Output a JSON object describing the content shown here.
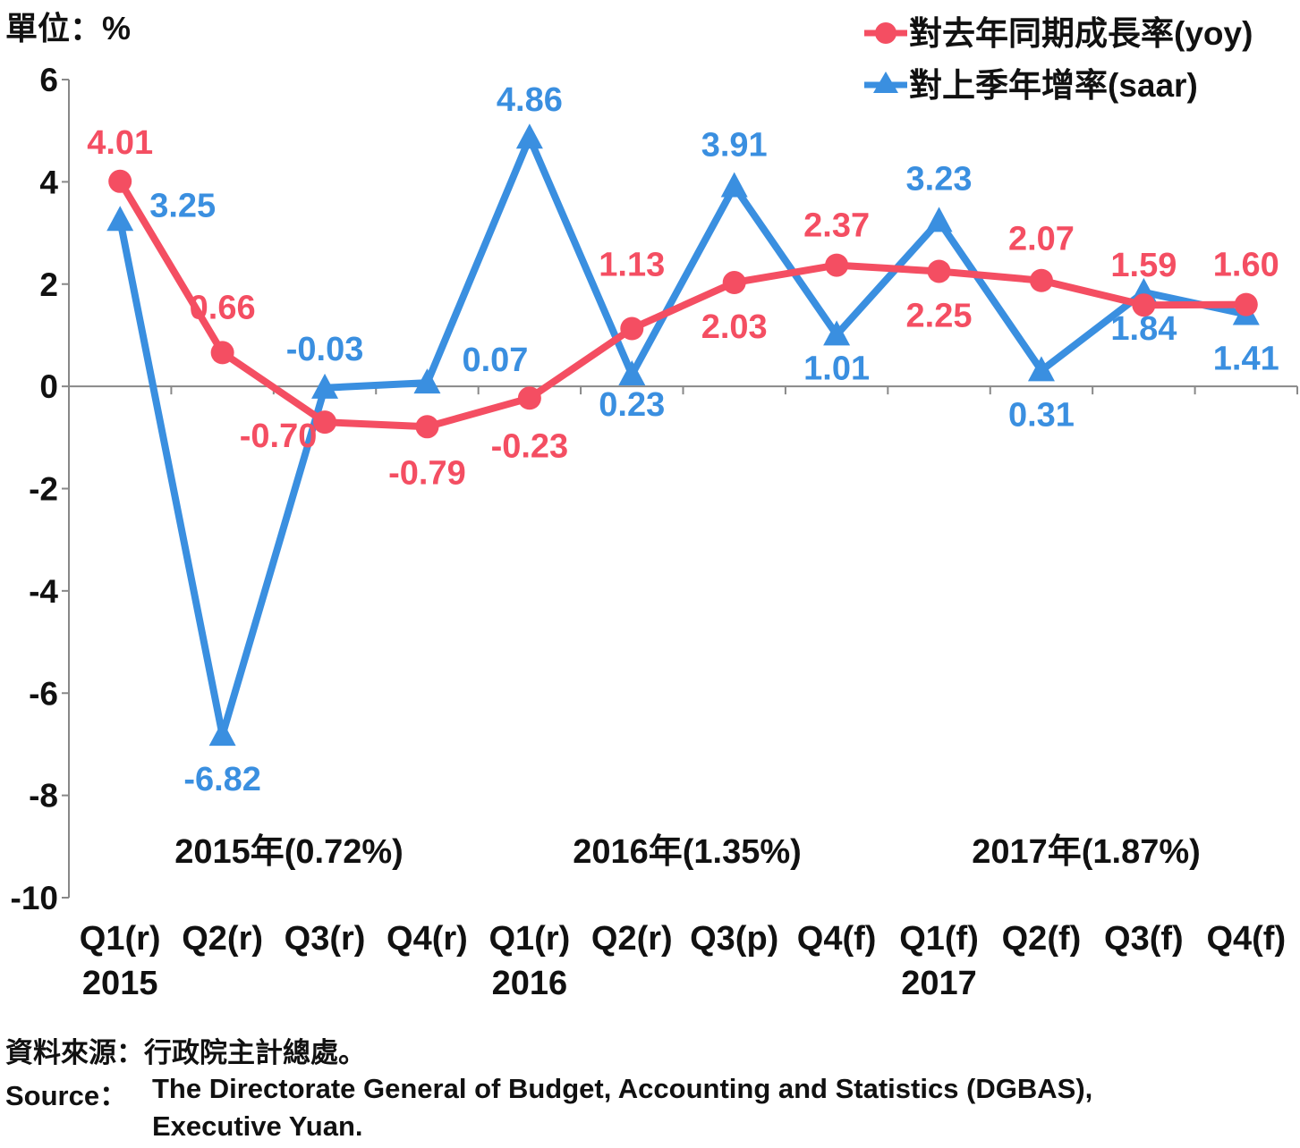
{
  "unit_label": "單位：%",
  "legend": {
    "yoy": "對去年同期成長率(yoy)",
    "saar": "對上季年增率(saar)"
  },
  "year_labels": [
    "2015年(0.72%)",
    "2016年(1.35%)",
    "2017年(1.87%)"
  ],
  "source_zh": "資料來源：行政院主計總處。",
  "source_en_label": "Source：",
  "source_en_line1": "The Directorate General of Budget, Accounting and Statistics (DGBAS),",
  "source_en_line2": "Executive Yuan.",
  "colors": {
    "yoy": "#f44e62",
    "saar": "#3a8fe0",
    "axis": "#888888",
    "text": "#111111"
  },
  "chart_data": {
    "type": "line",
    "categories": [
      "Q1(r)",
      "Q2(r)",
      "Q3(r)",
      "Q4(r)",
      "Q1(r)",
      "Q2(r)",
      "Q3(p)",
      "Q4(f)",
      "Q1(f)",
      "Q2(f)",
      "Q3(f)",
      "Q4(f)"
    ],
    "year_ticks": [
      {
        "index": 0,
        "label": "2015"
      },
      {
        "index": 4,
        "label": "2016"
      },
      {
        "index": 8,
        "label": "2017"
      }
    ],
    "ylim": [
      -10,
      6
    ],
    "yticks": [
      6,
      4,
      2,
      0,
      -2,
      -4,
      -6,
      -8,
      -10
    ],
    "series": [
      {
        "key": "yoy",
        "name": "對去年同期成長率(yoy)",
        "marker": "circle",
        "values": [
          4.01,
          0.66,
          -0.7,
          -0.79,
          -0.23,
          1.13,
          2.03,
          2.37,
          2.25,
          2.07,
          1.59,
          1.6
        ],
        "labels": [
          "4.01",
          "0.66",
          "-0.70",
          "-0.79",
          "-0.23",
          "1.13",
          "2.03",
          "2.37",
          "2.25",
          "2.07",
          "1.59",
          "1.60"
        ]
      },
      {
        "key": "saar",
        "name": "對上季年增率(saar)",
        "marker": "triangle",
        "values": [
          3.25,
          -6.82,
          -0.03,
          0.07,
          4.86,
          0.23,
          3.91,
          1.01,
          3.23,
          0.31,
          1.84,
          1.41
        ],
        "labels": [
          "3.25",
          "-6.82",
          "-0.03",
          "0.07",
          "4.86",
          "0.23",
          "3.91",
          "1.01",
          "3.23",
          "0.31",
          "1.84",
          "1.41"
        ]
      }
    ]
  }
}
